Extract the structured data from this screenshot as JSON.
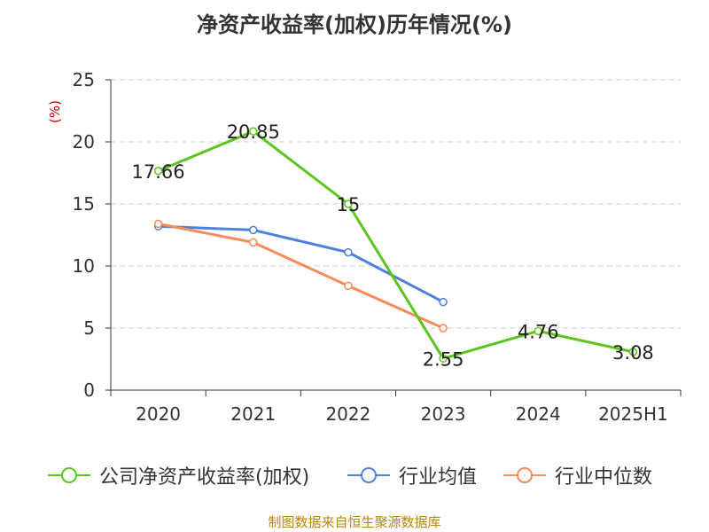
{
  "title": "净资产收益率(加权)历年情况(%)",
  "footer": "制图数据来自恒生聚源数据库",
  "colors": {
    "company": "#5dc41e",
    "industry_avg": "#4f7fdc",
    "industry_median": "#f98a5a",
    "axis": "#333333",
    "grid": "#cccccc",
    "unit": "#cc0000"
  },
  "chart_data": {
    "type": "line",
    "categories": [
      "2020",
      "2021",
      "2022",
      "2023",
      "2024",
      "2025H1"
    ],
    "ylabel": "(%)",
    "ylim": [
      0,
      25
    ],
    "yticks": [
      0,
      5,
      10,
      15,
      20,
      25
    ],
    "grid": true,
    "legend_position": "bottom",
    "series": [
      {
        "name": "公司净资产收益率(加权)",
        "color_key": "company",
        "values": [
          17.66,
          20.85,
          15,
          2.55,
          4.76,
          3.08
        ],
        "labels": [
          "17.66",
          "20.85",
          "15",
          "2.55",
          "4.76",
          "3.08"
        ]
      },
      {
        "name": "行业均值",
        "color_key": "industry_avg",
        "values": [
          13.2,
          12.9,
          11.1,
          7.1,
          null,
          null
        ]
      },
      {
        "name": "行业中位数",
        "color_key": "industry_median",
        "values": [
          13.4,
          11.9,
          8.4,
          5.0,
          null,
          null
        ]
      }
    ]
  }
}
